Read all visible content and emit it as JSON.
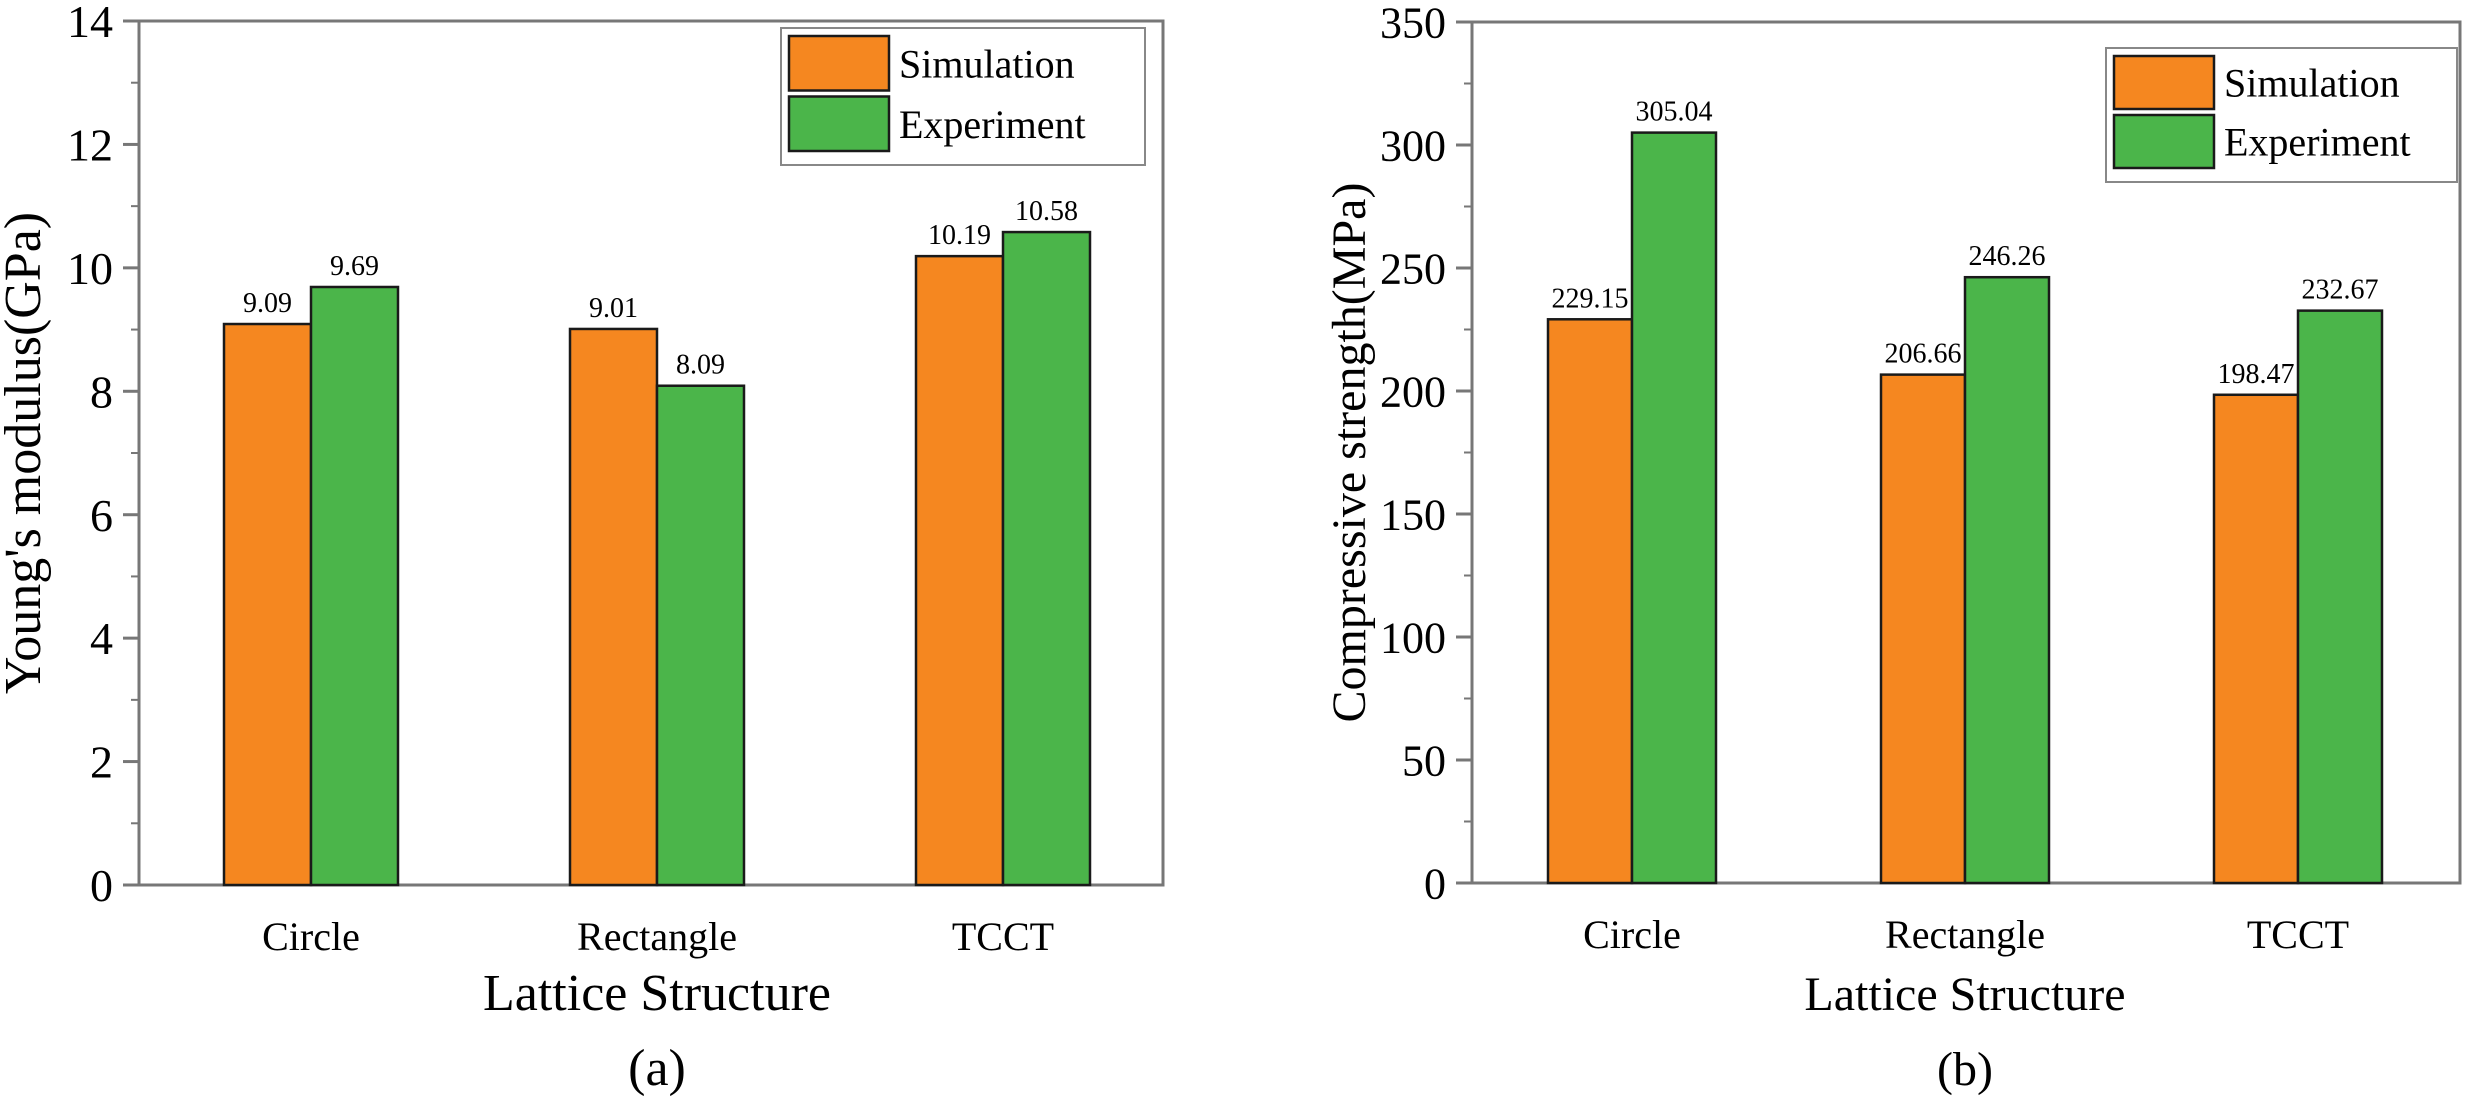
{
  "colors": {
    "simulation": "#F58720",
    "experiment": "#4BB54A",
    "axis": "#777777"
  },
  "chart_data": [
    {
      "type": "bar",
      "panel_label": "(a)",
      "categories": [
        "Circle",
        "Rectangle",
        "TCCT"
      ],
      "series": [
        {
          "name": "Simulation",
          "values": [
            9.09,
            9.01,
            10.19
          ],
          "labels": [
            "9.09",
            "9.01",
            "10.19"
          ]
        },
        {
          "name": "Experiment",
          "values": [
            9.69,
            8.09,
            10.58
          ],
          "labels": [
            "9.69",
            "8.09",
            "10.58"
          ]
        }
      ],
      "xlabel": "Lattice Structure",
      "ylabel": "Young's modulus(GPa)",
      "ylim": [
        0,
        14
      ],
      "yticks": [
        "0",
        "2",
        "4",
        "6",
        "8",
        "10",
        "12",
        "14"
      ],
      "ytick_values": [
        0,
        2,
        4,
        6,
        8,
        10,
        12,
        14
      ],
      "grid": false,
      "legend": "top-right"
    },
    {
      "type": "bar",
      "panel_label": "(b)",
      "categories": [
        "Circle",
        "Rectangle",
        "TCCT"
      ],
      "series": [
        {
          "name": "Simulation",
          "values": [
            229.15,
            206.66,
            198.47
          ],
          "labels": [
            "229.15",
            "206.66",
            "198.47"
          ]
        },
        {
          "name": "Experiment",
          "values": [
            305.04,
            246.26,
            232.67
          ],
          "labels": [
            "305.04",
            "246.26",
            "232.67"
          ]
        }
      ],
      "xlabel": "Lattice Structure",
      "ylabel": "Compressive strength(MPa)",
      "ylim": [
        0,
        350
      ],
      "yticks": [
        "0",
        "50",
        "100",
        "150",
        "200",
        "250",
        "300",
        "350"
      ],
      "ytick_values": [
        0,
        50,
        100,
        150,
        200,
        250,
        300,
        350
      ],
      "grid": false,
      "legend": "top-right"
    }
  ]
}
